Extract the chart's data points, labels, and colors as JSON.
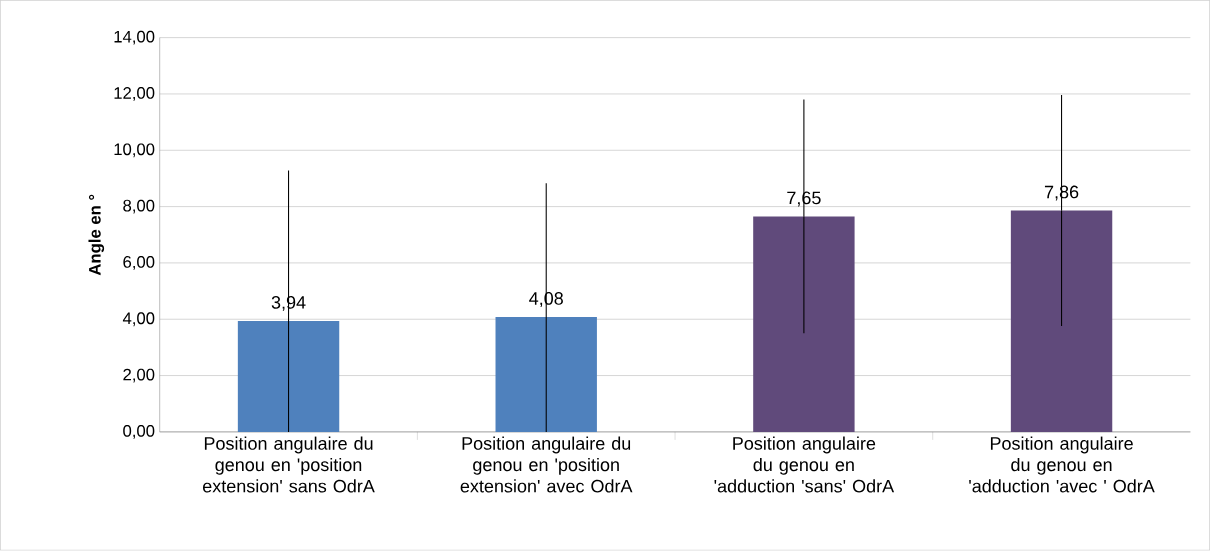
{
  "chart_data": {
    "type": "bar",
    "categories": [
      "Position angulaire du genou en 'position extension'  sans OdrA",
      "Position angulaire du genou en 'position extension' avec OdrA",
      "Position angulaire du genou en  'adduction 'sans' OdrA",
      "Position angulaire du genou en 'adduction 'avec ' OdrA"
    ],
    "values": [
      3.94,
      4.08,
      7.65,
      7.86
    ],
    "value_labels": [
      "3,94",
      "4,08",
      "7,65",
      "7,86"
    ],
    "errors": [
      [
        0,
        9.28
      ],
      [
        0,
        8.83
      ],
      4.15,
      4.1
    ],
    "colors": [
      "#4f81bd",
      "#4f81bd",
      "#604a7b",
      "#604a7b"
    ],
    "ylabel": "Angle en °",
    "ylim": [
      0,
      14
    ],
    "yticks": [
      {
        "value": 0,
        "label": "0,00"
      },
      {
        "value": 2,
        "label": "2,00"
      },
      {
        "value": 4,
        "label": "4,00"
      },
      {
        "value": 6,
        "label": "6,00"
      },
      {
        "value": 8,
        "label": "8,00"
      },
      {
        "value": 10,
        "label": "10,00"
      },
      {
        "value": 12,
        "label": "12,00"
      },
      {
        "value": 14,
        "label": "14,00"
      }
    ],
    "grid": "y"
  }
}
